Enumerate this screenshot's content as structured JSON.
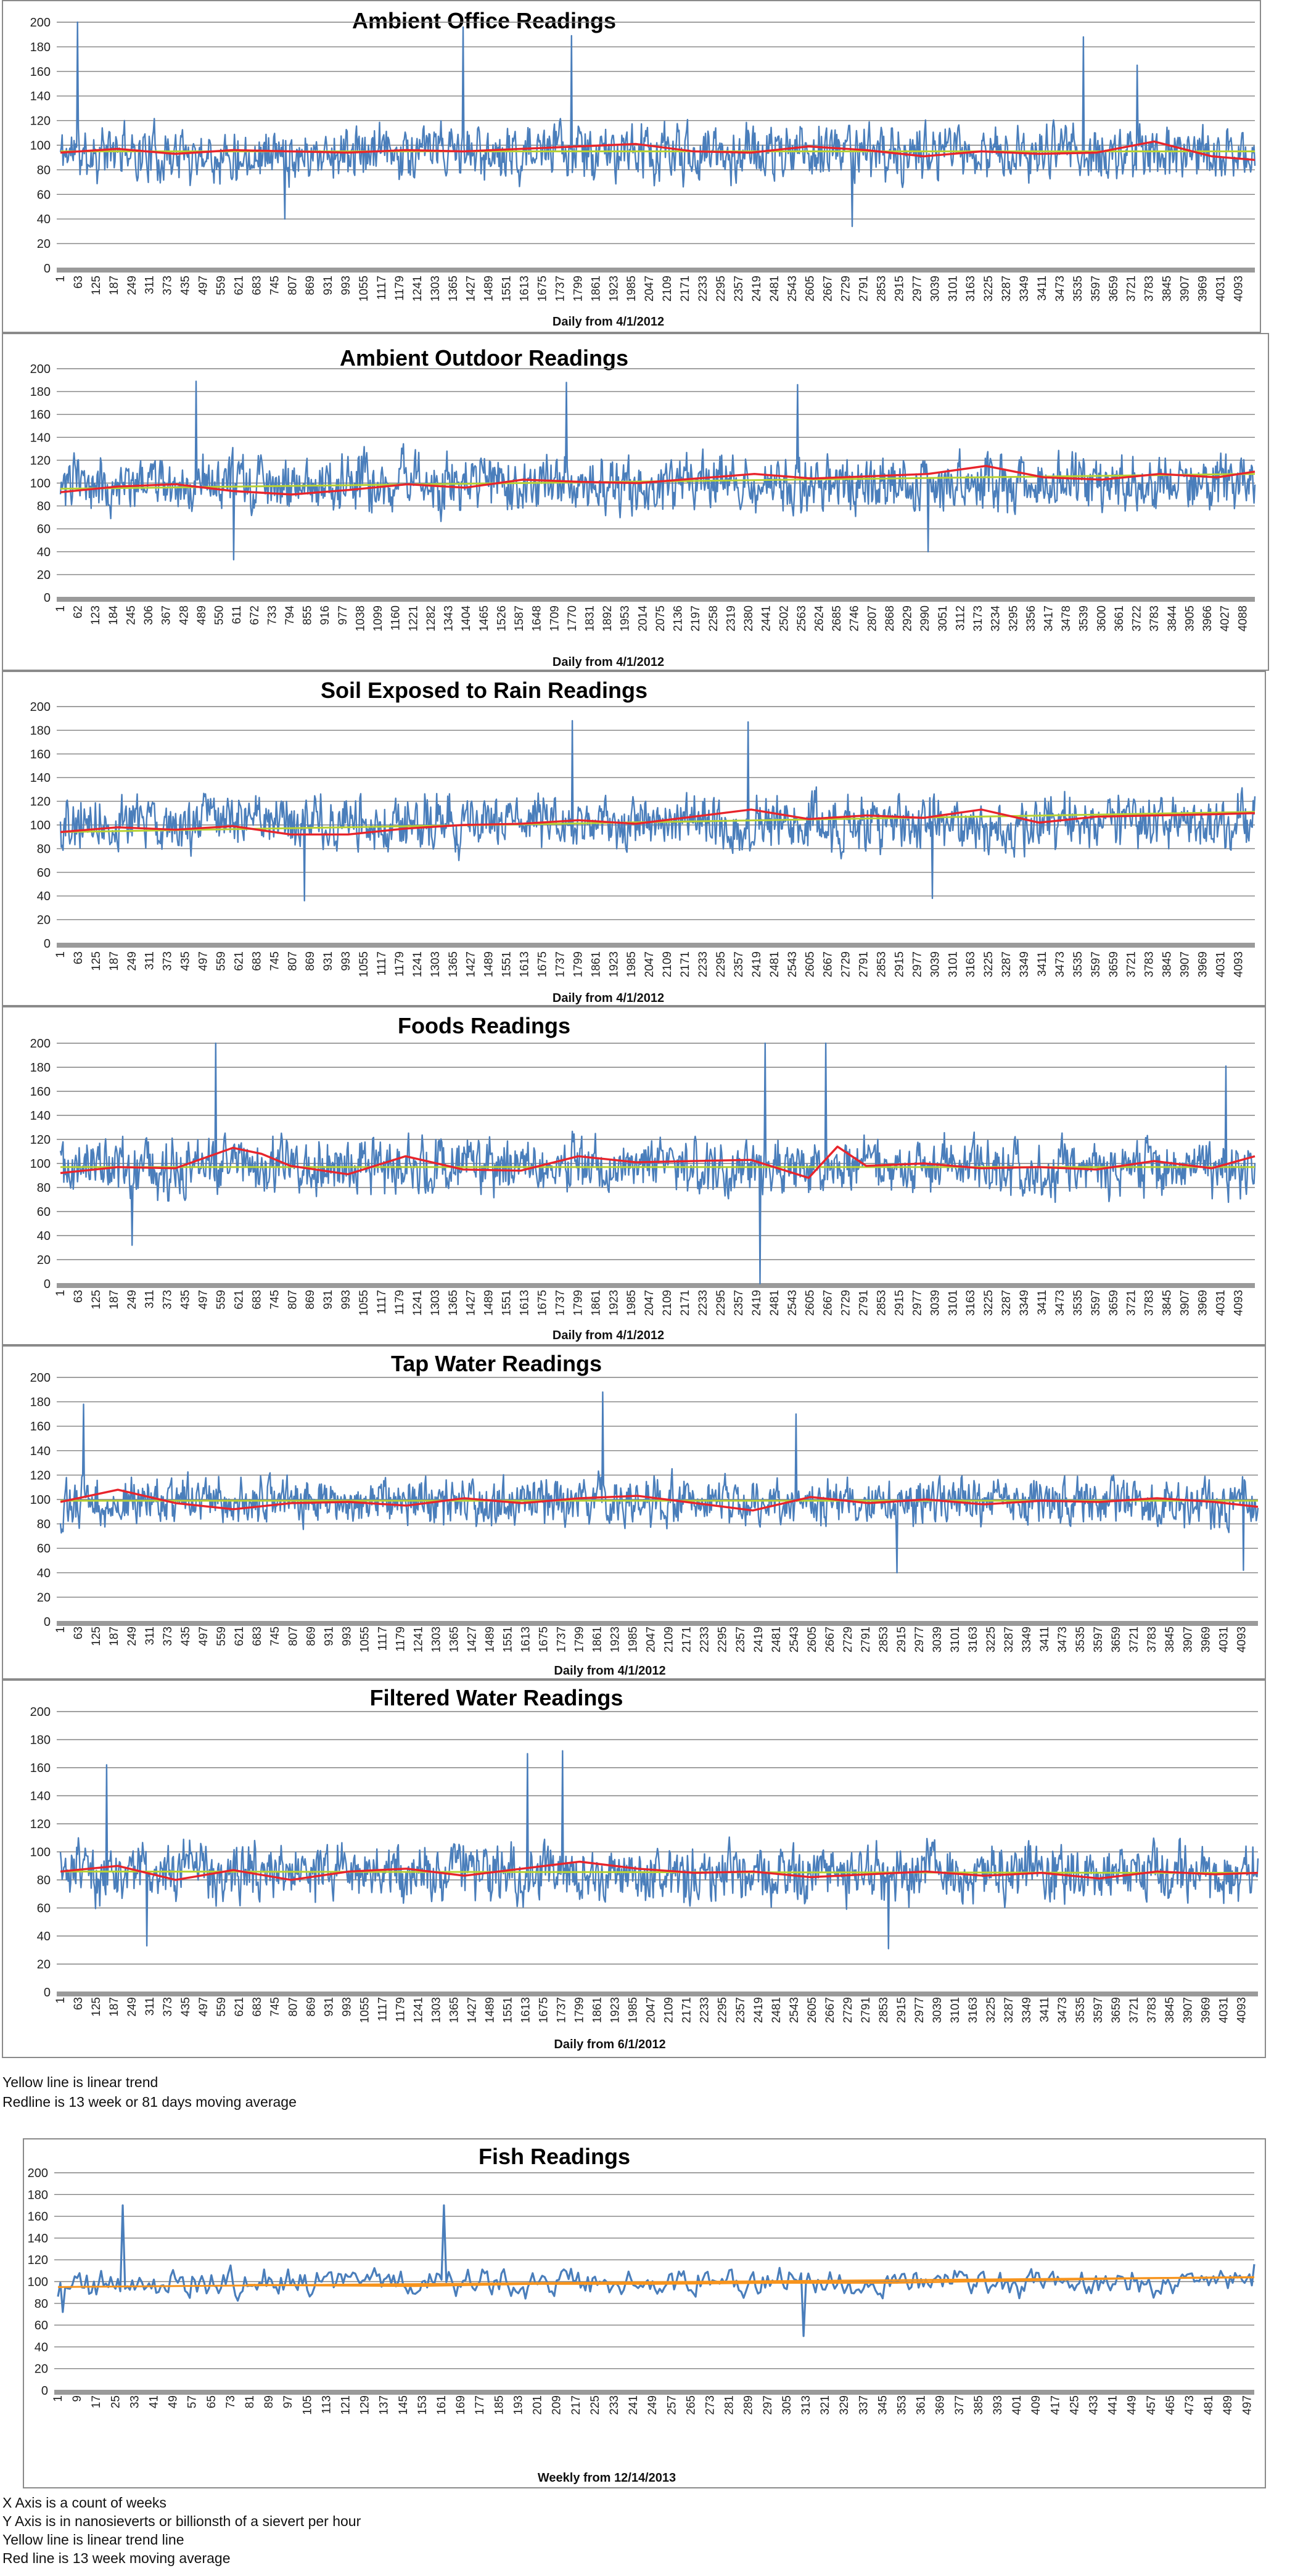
{
  "colors": {
    "series": "#4a7ebb",
    "moving_avg": "#e8242b",
    "trend": "#b8d234",
    "trend_fish": "#f7941d",
    "grid": "#808080",
    "axis_band": "#9a9a9a"
  },
  "notes_top": {
    "line1": "Yellow line is linear trend",
    "line2": "Redline is 13 week or 81 days moving average"
  },
  "notes_bottom": {
    "line1": "X Axis is a count of weeks",
    "line2": "Y Axis is in nanosieverts or billionsth of a sievert per hour",
    "line3": "Yellow line is linear trend line",
    "line4": "Red line is 13 week moving average"
  },
  "chart_data": [
    {
      "type": "line",
      "title": "Ambient Office Readings",
      "xlabel": "Daily from 4/1/2012",
      "ylabel": "",
      "ylim": [
        0,
        200
      ],
      "yticks": [
        0,
        20,
        40,
        60,
        80,
        100,
        120,
        140,
        160,
        180,
        200
      ],
      "xlim": [
        1,
        4150
      ],
      "xticks": [
        1,
        63,
        125,
        187,
        249,
        311,
        373,
        435,
        497,
        559,
        621,
        683,
        745,
        807,
        869,
        931,
        993,
        1055,
        1117,
        1179,
        1241,
        1303,
        1365,
        1427,
        1489,
        1551,
        1613,
        1675,
        1737,
        1799,
        1861,
        1923,
        1985,
        2047,
        2109,
        2171,
        2233,
        2295,
        2357,
        2419,
        2481,
        2543,
        2605,
        2667,
        2729,
        2791,
        2853,
        2915,
        2977,
        3039,
        3101,
        3163,
        3225,
        3287,
        3349,
        3411,
        3473,
        3535,
        3597,
        3659,
        3721,
        3783,
        3845,
        3907,
        3969,
        4031,
        4093
      ],
      "readings": {
        "mean": 94,
        "amplitude": 26,
        "seed": 11,
        "spikes": [
          [
            60,
            200
          ],
          [
            1400,
            196
          ],
          [
            1775,
            189
          ],
          [
            3555,
            188
          ],
          [
            3740,
            165
          ],
          [
            780,
            40
          ],
          [
            2750,
            34
          ]
        ]
      },
      "moving_average": {
        "x": [
          1,
          200,
          400,
          600,
          800,
          1000,
          1200,
          1400,
          1600,
          1800,
          2000,
          2200,
          2400,
          2600,
          2800,
          3000,
          3200,
          3400,
          3600,
          3800,
          4000,
          4150
        ],
        "y": [
          94,
          97,
          93,
          96,
          95,
          94,
          96,
          95,
          97,
          99,
          101,
          95,
          94,
          99,
          96,
          91,
          95,
          93,
          94,
          103,
          91,
          88
        ]
      },
      "trend": {
        "x": [
          1,
          4150
        ],
        "y": [
          95,
          95
        ]
      }
    },
    {
      "type": "line",
      "title": "Ambient Outdoor Readings",
      "xlabel": "Daily from 4/1/2012",
      "ylabel": "",
      "ylim": [
        0,
        200
      ],
      "yticks": [
        0,
        20,
        40,
        60,
        80,
        100,
        120,
        140,
        160,
        180,
        200
      ],
      "xlim": [
        1,
        4130
      ],
      "xticks": [
        1,
        62,
        123,
        184,
        245,
        306,
        367,
        428,
        489,
        550,
        611,
        672,
        733,
        794,
        855,
        916,
        977,
        1038,
        1099,
        1160,
        1221,
        1282,
        1343,
        1404,
        1465,
        1526,
        1587,
        1648,
        1709,
        1770,
        1831,
        1892,
        1953,
        2014,
        2075,
        2136,
        2197,
        2258,
        2319,
        2380,
        2441,
        2502,
        2563,
        2624,
        2685,
        2746,
        2807,
        2868,
        2929,
        2990,
        3051,
        3112,
        3173,
        3234,
        3295,
        3356,
        3417,
        3478,
        3539,
        3600,
        3661,
        3722,
        3783,
        3844,
        3905,
        3966,
        4027,
        4088
      ],
      "readings": {
        "mean": 100,
        "amplitude": 28,
        "seed": 23,
        "spikes": [
          [
            470,
            189
          ],
          [
            1750,
            188
          ],
          [
            2550,
            186
          ],
          [
            600,
            33
          ],
          [
            3000,
            40
          ]
        ]
      },
      "moving_average": {
        "x": [
          1,
          200,
          400,
          600,
          800,
          1000,
          1200,
          1400,
          1600,
          1800,
          2000,
          2200,
          2400,
          2600,
          2800,
          3000,
          3200,
          3400,
          3600,
          3800,
          4000,
          4130
        ],
        "y": [
          92,
          97,
          99,
          93,
          90,
          94,
          99,
          96,
          103,
          101,
          100,
          104,
          108,
          104,
          106,
          108,
          115,
          105,
          103,
          108,
          105,
          110
        ]
      },
      "trend": {
        "x": [
          1,
          4130
        ],
        "y": [
          95,
          108
        ]
      }
    },
    {
      "type": "line",
      "title": "Soil Exposed to Rain Readings",
      "xlabel": "Daily from 4/1/2012",
      "ylabel": "",
      "ylim": [
        0,
        200
      ],
      "yticks": [
        0,
        20,
        40,
        60,
        80,
        100,
        120,
        140,
        160,
        180,
        200
      ],
      "xlim": [
        1,
        4150
      ],
      "xticks": [
        1,
        63,
        125,
        187,
        249,
        311,
        373,
        435,
        497,
        559,
        621,
        683,
        745,
        807,
        869,
        931,
        993,
        1055,
        1117,
        1179,
        1241,
        1303,
        1365,
        1427,
        1489,
        1551,
        1613,
        1675,
        1737,
        1799,
        1861,
        1923,
        1985,
        2047,
        2109,
        2171,
        2233,
        2295,
        2357,
        2419,
        2481,
        2543,
        2605,
        2667,
        2729,
        2791,
        2853,
        2915,
        2977,
        3039,
        3101,
        3163,
        3225,
        3287,
        3349,
        3411,
        3473,
        3535,
        3597,
        3659,
        3721,
        3783,
        3845,
        3907,
        3969,
        4031,
        4093
      ],
      "readings": {
        "mean": 102,
        "amplitude": 27,
        "seed": 37,
        "spikes": [
          [
            1780,
            188
          ],
          [
            2390,
            187
          ],
          [
            850,
            36
          ],
          [
            3030,
            38
          ]
        ]
      },
      "moving_average": {
        "x": [
          1,
          200,
          400,
          600,
          800,
          1000,
          1200,
          1400,
          1600,
          1800,
          2000,
          2200,
          2400,
          2600,
          2800,
          3000,
          3200,
          3400,
          3600,
          3800,
          4000,
          4150
        ],
        "y": [
          94,
          98,
          96,
          99,
          92,
          92,
          97,
          100,
          101,
          104,
          101,
          107,
          113,
          105,
          108,
          106,
          113,
          102,
          107,
          108,
          109,
          110
        ]
      },
      "trend": {
        "x": [
          1,
          4150
        ],
        "y": [
          94,
          111
        ]
      }
    },
    {
      "type": "line",
      "title": "Foods Readings",
      "xlabel": "Daily from 4/1/2012",
      "ylabel": "",
      "ylim": [
        0,
        200
      ],
      "yticks": [
        0,
        20,
        40,
        60,
        80,
        100,
        120,
        140,
        160,
        180,
        200
      ],
      "xlim": [
        1,
        4150
      ],
      "xticks": [
        1,
        63,
        125,
        187,
        249,
        311,
        373,
        435,
        497,
        559,
        621,
        683,
        745,
        807,
        869,
        931,
        993,
        1055,
        1117,
        1179,
        1241,
        1303,
        1365,
        1427,
        1489,
        1551,
        1613,
        1675,
        1737,
        1799,
        1861,
        1923,
        1985,
        2047,
        2109,
        2171,
        2233,
        2295,
        2357,
        2419,
        2481,
        2543,
        2605,
        2667,
        2729,
        2791,
        2853,
        2915,
        2977,
        3039,
        3101,
        3163,
        3225,
        3287,
        3349,
        3411,
        3473,
        3535,
        3597,
        3659,
        3721,
        3783,
        3845,
        3907,
        3969,
        4031,
        4093
      ],
      "readings": {
        "mean": 97,
        "amplitude": 28,
        "seed": 41,
        "spikes": [
          [
            540,
            200
          ],
          [
            2450,
            200
          ],
          [
            2660,
            200
          ],
          [
            2430,
            0
          ],
          [
            4050,
            181
          ],
          [
            250,
            32
          ]
        ]
      },
      "moving_average": {
        "x": [
          1,
          200,
          400,
          600,
          700,
          800,
          1000,
          1200,
          1400,
          1600,
          1800,
          2000,
          2200,
          2400,
          2600,
          2700,
          2800,
          3000,
          3200,
          3400,
          3600,
          3800,
          4000,
          4150
        ],
        "y": [
          92,
          97,
          96,
          113,
          108,
          98,
          91,
          106,
          95,
          94,
          106,
          101,
          102,
          103,
          88,
          114,
          98,
          100,
          96,
          97,
          95,
          102,
          96,
          106
        ]
      },
      "trend": {
        "x": [
          1,
          4150
        ],
        "y": [
          97,
          97
        ]
      }
    },
    {
      "type": "line",
      "title": "Tap Water Readings",
      "xlabel": "Daily from 4/1/2012",
      "ylabel": "",
      "ylim": [
        0,
        200
      ],
      "yticks": [
        0,
        20,
        40,
        60,
        80,
        100,
        120,
        140,
        160,
        180,
        200
      ],
      "xlim": [
        1,
        4150
      ],
      "xticks": [
        1,
        63,
        125,
        187,
        249,
        311,
        373,
        435,
        497,
        559,
        621,
        683,
        745,
        807,
        869,
        931,
        993,
        1055,
        1117,
        1179,
        1241,
        1303,
        1365,
        1427,
        1489,
        1551,
        1613,
        1675,
        1737,
        1799,
        1861,
        1923,
        1985,
        2047,
        2109,
        2171,
        2233,
        2295,
        2357,
        2419,
        2481,
        2543,
        2605,
        2667,
        2729,
        2791,
        2853,
        2915,
        2977,
        3039,
        3101,
        3163,
        3225,
        3287,
        3349,
        3411,
        3473,
        3535,
        3597,
        3659,
        3721,
        3783,
        3845,
        3907,
        3969,
        4031,
        4093
      ],
      "readings": {
        "mean": 98,
        "amplitude": 23,
        "seed": 53,
        "spikes": [
          [
            80,
            178
          ],
          [
            1880,
            188
          ],
          [
            2550,
            170
          ],
          [
            2900,
            40
          ],
          [
            4100,
            42
          ]
        ]
      },
      "moving_average": {
        "x": [
          1,
          200,
          400,
          600,
          800,
          1000,
          1200,
          1400,
          1600,
          1800,
          2000,
          2200,
          2400,
          2600,
          2800,
          3000,
          3200,
          3400,
          3600,
          3800,
          4000,
          4150
        ],
        "y": [
          98,
          108,
          97,
          92,
          97,
          98,
          95,
          101,
          97,
          101,
          103,
          97,
          91,
          102,
          97,
          100,
          96,
          99,
          98,
          101,
          98,
          94
        ]
      },
      "trend": {
        "x": [
          1,
          4150
        ],
        "y": [
          99,
          99
        ]
      }
    },
    {
      "type": "line",
      "title": "Filtered Water Readings",
      "xlabel": "Daily from 6/1/2012",
      "ylabel": "",
      "ylim": [
        0,
        200
      ],
      "yticks": [
        0,
        20,
        40,
        60,
        80,
        100,
        120,
        140,
        160,
        180,
        200
      ],
      "xlim": [
        1,
        4150
      ],
      "xticks": [
        1,
        63,
        125,
        187,
        249,
        311,
        373,
        435,
        497,
        559,
        621,
        683,
        745,
        807,
        869,
        931,
        993,
        1055,
        1117,
        1179,
        1241,
        1303,
        1365,
        1427,
        1489,
        1551,
        1613,
        1675,
        1737,
        1799,
        1861,
        1923,
        1985,
        2047,
        2109,
        2171,
        2233,
        2295,
        2357,
        2419,
        2481,
        2543,
        2605,
        2667,
        2729,
        2791,
        2853,
        2915,
        2977,
        3039,
        3101,
        3163,
        3225,
        3287,
        3349,
        3411,
        3473,
        3535,
        3597,
        3659,
        3721,
        3783,
        3845,
        3907,
        3969,
        4031,
        4093
      ],
      "readings": {
        "mean": 85,
        "amplitude": 24,
        "seed": 67,
        "spikes": [
          [
            160,
            162
          ],
          [
            1620,
            170
          ],
          [
            1740,
            172
          ],
          [
            2870,
            31
          ],
          [
            300,
            33
          ]
        ]
      },
      "moving_average": {
        "x": [
          1,
          200,
          400,
          600,
          800,
          1000,
          1200,
          1400,
          1600,
          1800,
          2000,
          2200,
          2400,
          2600,
          2800,
          3000,
          3200,
          3400,
          3600,
          3800,
          4000,
          4150
        ],
        "y": [
          86,
          90,
          80,
          87,
          80,
          86,
          88,
          83,
          88,
          93,
          88,
          85,
          86,
          82,
          84,
          86,
          83,
          85,
          81,
          86,
          84,
          85
        ]
      },
      "trend": {
        "x": [
          1,
          4150
        ],
        "y": [
          86,
          85
        ]
      }
    },
    {
      "type": "line",
      "title": "Fish Readings",
      "xlabel": "Weekly from 12/14/2013",
      "ylabel": "",
      "ylim": [
        0,
        200
      ],
      "yticks": [
        0,
        20,
        40,
        60,
        80,
        100,
        120,
        140,
        160,
        180,
        200
      ],
      "xlim": [
        1,
        500
      ],
      "xticks": [
        1,
        9,
        17,
        25,
        33,
        41,
        49,
        57,
        65,
        73,
        81,
        89,
        97,
        105,
        113,
        121,
        129,
        137,
        145,
        153,
        161,
        169,
        177,
        185,
        193,
        201,
        209,
        217,
        225,
        233,
        241,
        249,
        257,
        265,
        273,
        281,
        289,
        297,
        305,
        313,
        321,
        329,
        337,
        345,
        353,
        361,
        369,
        377,
        385,
        393,
        401,
        409,
        417,
        425,
        433,
        441,
        449,
        457,
        465,
        473,
        481,
        489,
        497
      ],
      "readings": {
        "mean": 99,
        "amplitude": 14,
        "seed": 79,
        "spikes": [
          [
            28,
            170
          ],
          [
            162,
            170
          ],
          [
            3,
            72
          ],
          [
            312,
            50
          ],
          [
            500,
            116
          ]
        ]
      },
      "moving_average": {
        "x": [
          80,
          150,
          200,
          250,
          300,
          350,
          400,
          450,
          500
        ],
        "y": [
          97,
          96,
          98,
          98,
          99,
          99,
          101,
          103,
          104
        ]
      },
      "trend": {
        "x": [
          1,
          500
        ],
        "y": [
          95,
          104
        ]
      }
    }
  ]
}
